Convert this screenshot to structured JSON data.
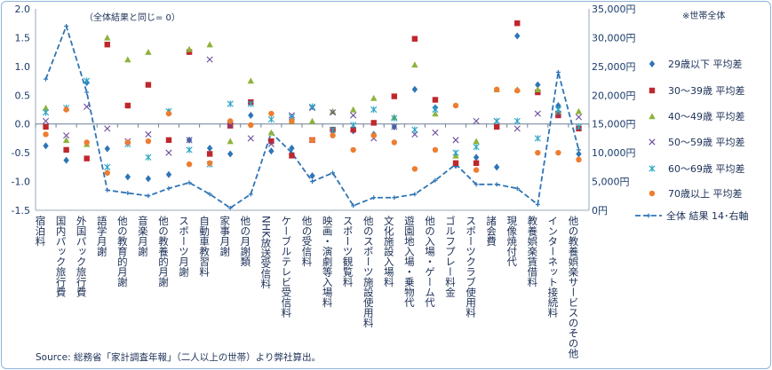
{
  "chart_data": {
    "type": "scatter",
    "zero_note": "（全体結果と同じ= 0）",
    "corner_note": "※世帯全体",
    "source": "Source: 総務省「家計調査年報」（二人以上の世帯）より弊社算出。",
    "y_left": {
      "min": -1.5,
      "max": 2.0,
      "ticks": [
        "2.0",
        "1.5",
        "1.0",
        "0.5",
        "0.0",
        "-0.5",
        "-1.0",
        "-1.5"
      ]
    },
    "y_right": {
      "min": 0,
      "max": 35000,
      "ticks": [
        "35,000円",
        "30,000円",
        "25,000円",
        "20,000円",
        "15,000円",
        "10,000円",
        "5,000円",
        "0円"
      ]
    },
    "categories": [
      "宿泊料",
      "国内パック旅行費",
      "外国パック旅行費",
      "語学月謝",
      "他の教育的月謝",
      "音楽月謝",
      "他の教養的月謝",
      "スポーツ月謝",
      "自動車教習料",
      "家事月謝",
      "他の月謝類",
      "NHK放送受信料",
      "ケーブルテレビ受信料",
      "他の受信料",
      "映画・演劇等入場料",
      "スポーツ観覧料",
      "他のスポーツ施設使用料",
      "文化施設入場料",
      "遊園地入場・乗物代",
      "他の入場・ゲーム代",
      "ゴルフプレー料金",
      "スポーツクラブ使用料",
      "諸会費",
      "現像焼付代",
      "教養娯楽賃借料",
      "インターネット接続料",
      "他の教養娯楽サービスのその他"
    ],
    "series": [
      {
        "name": "29歳以下 平均差",
        "color": "#2e75b6",
        "marker": "diamond",
        "values": [
          -0.38,
          -0.63,
          0.72,
          -0.43,
          -0.92,
          -0.95,
          -0.88,
          -0.28,
          -0.42,
          -0.52,
          0.15,
          -0.47,
          -0.42,
          -0.9,
          -0.12,
          -0.12,
          -0.18,
          -0.05,
          0.6,
          0.28,
          -0.72,
          -0.58,
          -0.75,
          1.53,
          0.68,
          0.32,
          -0.52
        ]
      },
      {
        "name": "30～39歳 平均差",
        "color": "#c0272d",
        "marker": "square",
        "values": [
          -0.05,
          -0.45,
          -0.6,
          1.38,
          0.32,
          0.68,
          -0.28,
          1.25,
          -0.52,
          -0.03,
          0.38,
          -0.3,
          -0.55,
          -0.28,
          -0.1,
          -0.1,
          0.02,
          0.48,
          1.48,
          0.42,
          -0.68,
          -0.68,
          -0.05,
          1.75,
          0.55,
          0.15,
          -0.08
        ]
      },
      {
        "name": "40～49歳 平均差",
        "color": "#8db33b",
        "marker": "triangle",
        "values": [
          0.28,
          -0.28,
          -0.35,
          1.5,
          1.12,
          1.25,
          0.22,
          1.3,
          1.38,
          -0.3,
          0.75,
          -0.15,
          0.05,
          0.05,
          0.22,
          0.25,
          0.45,
          0.12,
          1.03,
          0.18,
          -0.55,
          -0.3,
          0.6,
          0.6,
          0.6,
          0.22,
          0.22
        ]
      },
      {
        "name": "50～59歳 平均差",
        "color": "#6b4c9a",
        "marker": "x",
        "values": [
          0.05,
          -0.2,
          0.3,
          -0.08,
          -0.3,
          -0.18,
          -0.5,
          -0.28,
          1.12,
          -0.02,
          -0.25,
          -0.35,
          0.15,
          0.28,
          0.2,
          0.15,
          -0.25,
          -0.05,
          -0.18,
          -0.15,
          -0.28,
          0.05,
          0.05,
          -0.08,
          0.18,
          0.18,
          0.12
        ]
      },
      {
        "name": "60～69歳 平均差",
        "color": "#29a4c4",
        "marker": "asterisk",
        "values": [
          0.2,
          0.28,
          0.75,
          -0.75,
          -0.35,
          -0.58,
          0.22,
          -0.45,
          -0.7,
          0.35,
          0.35,
          0.08,
          0.12,
          0.3,
          -0.1,
          -0.02,
          0.25,
          0.1,
          -0.1,
          0.25,
          -0.5,
          -0.4,
          0.05,
          0.05,
          -0.25,
          0.25,
          -0.05
        ]
      },
      {
        "name": "70歳以上 平均差",
        "color": "#ed7d31",
        "marker": "circle",
        "values": [
          -0.18,
          0.25,
          -0.32,
          -0.85,
          -0.32,
          -0.3,
          0.18,
          -0.7,
          -0.68,
          0.05,
          -0.02,
          0.18,
          0.05,
          -0.28,
          -0.2,
          -0.45,
          -0.2,
          -0.32,
          -0.78,
          -0.45,
          0.32,
          -0.8,
          0.6,
          0.58,
          -0.5,
          -0.5,
          -0.62
        ]
      },
      {
        "name": "全体 結果 14･右軸",
        "color": "#2e75b6",
        "marker": "line-dashed",
        "axis": "right",
        "values": [
          22800,
          32000,
          20500,
          3500,
          3000,
          2500,
          3800,
          4800,
          2800,
          400,
          2800,
          13500,
          10000,
          5000,
          6500,
          800,
          2200,
          2200,
          2800,
          5200,
          8000,
          4500,
          4500,
          3800,
          1000,
          24000,
          10500
        ]
      }
    ]
  }
}
